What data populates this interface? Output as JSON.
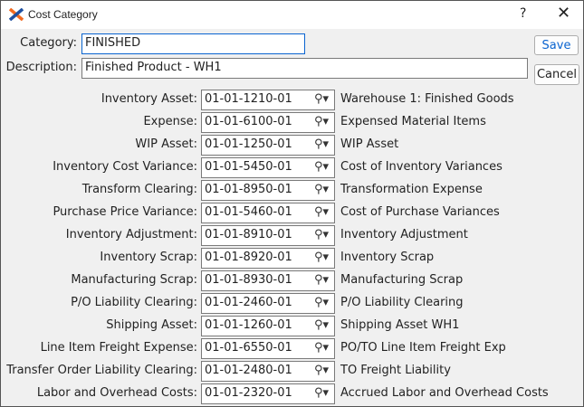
{
  "window": {
    "title": "Cost Category",
    "help": "?",
    "close": "✕"
  },
  "category": {
    "label": "Category:",
    "value": "FINISHED"
  },
  "description": {
    "label": "Description:",
    "value": "Finished Product - WH1"
  },
  "buttons": {
    "save": "Save",
    "cancel": "Cancel"
  },
  "colors": {
    "accent": "#0a64d0",
    "logo_orange": "#f26a21",
    "logo_blue": "#1e4fa0"
  },
  "accounts": [
    {
      "label": "Inventory Asset:",
      "account": "01-01-1210-01",
      "desc": "Warehouse 1: Finished Goods"
    },
    {
      "label": "Expense:",
      "account": "01-01-6100-01",
      "desc": "Expensed Material Items"
    },
    {
      "label": "WIP Asset:",
      "account": "01-01-1250-01",
      "desc": "WIP Asset"
    },
    {
      "label": "Inventory Cost Variance:",
      "account": "01-01-5450-01",
      "desc": "Cost of Inventory Variances"
    },
    {
      "label": "Transform Clearing:",
      "account": "01-01-8950-01",
      "desc": "Transformation Expense"
    },
    {
      "label": "Purchase Price Variance:",
      "account": "01-01-5460-01",
      "desc": "Cost of Purchase Variances"
    },
    {
      "label": "Inventory Adjustment:",
      "account": "01-01-8910-01",
      "desc": "Inventory Adjustment"
    },
    {
      "label": "Inventory Scrap:",
      "account": "01-01-8920-01",
      "desc": "Inventory Scrap"
    },
    {
      "label": "Manufacturing Scrap:",
      "account": "01-01-8930-01",
      "desc": "Manufacturing Scrap"
    },
    {
      "label": "P/O Liability Clearing:",
      "account": "01-01-2460-01",
      "desc": "P/O Liability Clearing"
    },
    {
      "label": "Shipping Asset:",
      "account": "01-01-1260-01",
      "desc": "Shipping Asset WH1"
    },
    {
      "label": "Line Item Freight Expense:",
      "account": "01-01-6550-01",
      "desc": "PO/TO Line Item Freight Exp"
    },
    {
      "label": "Transfer Order Liability Clearing:",
      "account": "01-01-2480-01",
      "desc": "TO Freight Liability"
    },
    {
      "label": "Labor and Overhead Costs:",
      "account": "01-01-2320-01",
      "desc": "Accrued Labor and Overhead Costs"
    }
  ]
}
